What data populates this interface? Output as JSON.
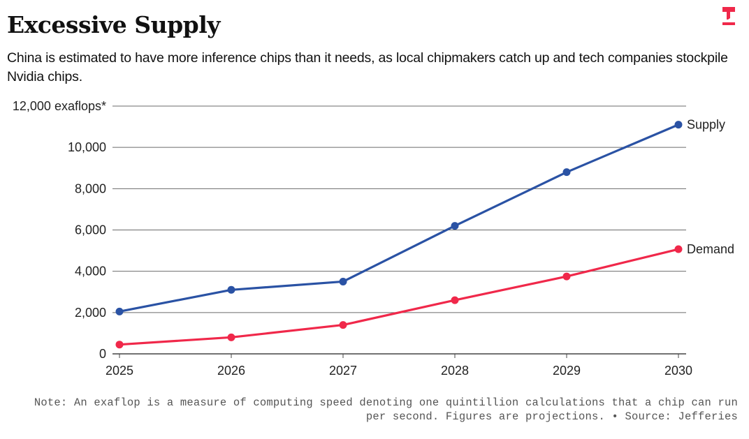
{
  "header": {
    "title": "Excessive Supply",
    "subtitle": "China is estimated to have more inference chips than it needs, as local chipmakers catch up and tech companies stockpile Nvidia chips.",
    "logo_icon": "publication-logo-icon",
    "logo_color": "#F0284A"
  },
  "footer": {
    "note": "Note: An exaflop is a measure of computing speed denoting one quintillion calculations that a chip can run per second. Figures are projections. • Source: Jefferies"
  },
  "chart_data": {
    "type": "line",
    "title": "Excessive Supply",
    "subtitle": "China is estimated to have more inference chips than it needs, as local chipmakers catch up and tech companies stockpile Nvidia chips.",
    "xlabel": "",
    "ylabel": "exaflops*",
    "x": [
      "2025",
      "2026",
      "2027",
      "2028",
      "2029",
      "2030"
    ],
    "ylim": [
      0,
      12000
    ],
    "yticks": [
      0,
      2000,
      4000,
      6000,
      8000,
      10000,
      12000
    ],
    "ytick_labels": [
      "0",
      "2,000",
      "4,000",
      "6,000",
      "8,000",
      "10,000",
      "12,000 exaflops*"
    ],
    "grid": true,
    "legend": "direct labels at line ends (right)",
    "series": [
      {
        "name": "Supply",
        "color": "#2A52A4",
        "values": [
          2050,
          3100,
          3500,
          6200,
          8800,
          11100
        ]
      },
      {
        "name": "Demand",
        "color": "#F0284A",
        "values": [
          450,
          800,
          1400,
          2600,
          3750,
          5070
        ]
      }
    ],
    "note": "Note: An exaflop is a measure of computing speed denoting one quintillion calculations that a chip can run per second. Figures are projections. • Source: Jefferies"
  }
}
